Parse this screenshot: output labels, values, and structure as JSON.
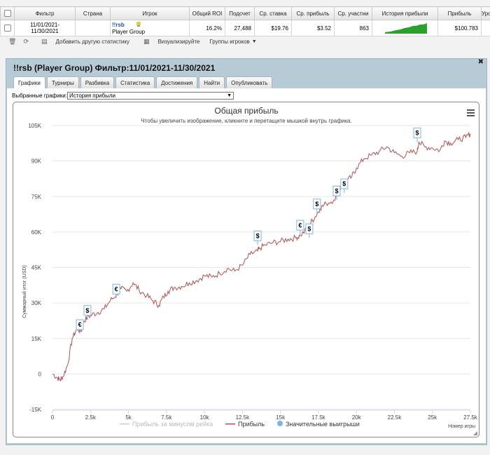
{
  "table": {
    "headers": [
      "Фильтр",
      "Страна",
      "Игрок",
      "Общий ROI",
      "Подсчет",
      "Ср. ставка",
      "Ср. прибыль",
      "Ср. участни",
      "История прибыли",
      "Прибыль",
      "Уро"
    ],
    "row": {
      "filter_line1": "11/01/2021-",
      "filter_line2": "11/30/2021",
      "country": "",
      "player_name": "!!rsb",
      "player_group": "Player Group",
      "roi": "16.2%",
      "count": "27,488",
      "avg_stake": "$19.76",
      "avg_profit": "$3.52",
      "avg_participants": "863",
      "profit": "$100.783"
    }
  },
  "toolbar": {
    "add_stats": "Добавить другую статистику",
    "visualize": "Визуализируйте",
    "player_groups": "Группы игроков"
  },
  "panel": {
    "title": "!!rsb (Player Group) Фильтр:11/01/2021-11/30/2021",
    "tabs": [
      "Графики",
      "Турниры",
      "Разбивка",
      "Статистика",
      "Достижения",
      "Найти",
      "Опубликовать"
    ],
    "selected_label": "Выбранные графики:",
    "selected_value": "История прибыли"
  },
  "colors": {
    "profit_line": "#b05050",
    "panel_bg": "#b6cbd5",
    "spark": "#2ca02c"
  },
  "chart_data": {
    "type": "line",
    "title": "Общая прибыль",
    "subtitle": "Чтобы увеличить изображение, кликните и перетащите мышкой внутрь графика.",
    "xlabel": "Номер игры",
    "ylabel": "Суммарный итог (USD)",
    "xlim": [
      0,
      27500
    ],
    "ylim": [
      -15000,
      105000
    ],
    "x_ticks": [
      0,
      2500,
      5000,
      7500,
      10000,
      12500,
      15000,
      17500,
      20000,
      22500,
      25000,
      27500
    ],
    "x_tick_labels": [
      "0",
      "2.5k",
      "5k",
      "7.5k",
      "10k",
      "12.5k",
      "15k",
      "17.5k",
      "20k",
      "22.5k",
      "25k",
      "27.5k"
    ],
    "y_ticks": [
      -15000,
      0,
      15000,
      30000,
      45000,
      60000,
      75000,
      90000,
      105000
    ],
    "y_tick_labels": [
      "-15K",
      "0",
      "15K",
      "30K",
      "45K",
      "60K",
      "75K",
      "90K",
      "105K"
    ],
    "legend": [
      "Прибыль за минусом рейка",
      "Прибыль",
      "Значительные выигрыши"
    ],
    "series": [
      {
        "name": "Прибыль",
        "x": [
          0,
          300,
          500,
          700,
          1000,
          1300,
          1600,
          1900,
          2000,
          2300,
          2600,
          3000,
          3400,
          3800,
          4200,
          4500,
          4900,
          5300,
          5700,
          6200,
          6600,
          7000,
          7300,
          7600,
          8000,
          8500,
          9000,
          9500,
          10000,
          10500,
          11000,
          11500,
          12000,
          12500,
          13000,
          13500,
          13600,
          14000,
          14500,
          15000,
          15500,
          16000,
          16300,
          16800,
          17000,
          17300,
          17600,
          18000,
          18500,
          19000,
          19300,
          19700,
          20000,
          20500,
          21000,
          21500,
          22000,
          22500,
          23000,
          23500,
          24000,
          24100,
          24500,
          25000,
          25500,
          25800,
          26200,
          26700,
          27200,
          27500
        ],
        "y": [
          0,
          -1500,
          -2500,
          -1000,
          4000,
          15000,
          19000,
          18000,
          22000,
          24000,
          25000,
          26000,
          27500,
          31000,
          33500,
          36000,
          35000,
          38500,
          35500,
          33000,
          31000,
          29000,
          32500,
          35000,
          36500,
          37000,
          38500,
          39500,
          41500,
          41000,
          42500,
          44500,
          43500,
          46000,
          50500,
          52000,
          53000,
          54500,
          55500,
          56000,
          57000,
          57500,
          58500,
          61500,
          64000,
          66500,
          70000,
          72000,
          73500,
          78500,
          81000,
          83500,
          87000,
          91000,
          92500,
          94000,
          96000,
          93500,
          92000,
          93500,
          94000,
          98000,
          96000,
          95500,
          94500,
          98500,
          97500,
          99000,
          100000,
          101500
        ]
      }
    ],
    "significant_wins": [
      {
        "x": 1800,
        "y": 17000,
        "symbol": "€"
      },
      {
        "x": 2300,
        "y": 23000,
        "symbol": "$"
      },
      {
        "x": 4200,
        "y": 32000,
        "symbol": "€"
      },
      {
        "x": 13500,
        "y": 54500,
        "symbol": "$"
      },
      {
        "x": 16300,
        "y": 59000,
        "symbol": "€"
      },
      {
        "x": 16900,
        "y": 57500,
        "symbol": "$"
      },
      {
        "x": 17400,
        "y": 68000,
        "symbol": "$"
      },
      {
        "x": 18700,
        "y": 73500,
        "symbol": "$"
      },
      {
        "x": 19200,
        "y": 76500,
        "symbol": "$"
      },
      {
        "x": 24000,
        "y": 98000,
        "symbol": "$"
      }
    ]
  }
}
